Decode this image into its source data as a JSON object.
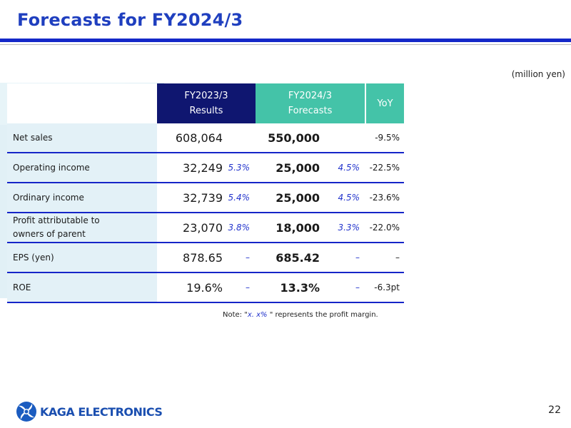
{
  "page": {
    "title": "Forecasts for FY2024/3",
    "unit": "(million yen)",
    "note_prefix": "Note: \"",
    "note_emph": "x. x%",
    "note_suffix": " \" represents the profit margin.",
    "page_number": "22",
    "logo_text": "KAGA ELECTRONICS"
  },
  "table": {
    "header": {
      "results_line1": "FY2023/3",
      "results_line2": "Results",
      "forecast_line1": "FY2024/3",
      "forecast_line2": "Forecasts",
      "yoy": "YoY"
    },
    "rows": [
      {
        "label": "Net sales",
        "label2": "",
        "result": "608,064",
        "result_margin": "",
        "forecast": "550,000",
        "forecast_margin": "",
        "yoy": "-9.5%"
      },
      {
        "label": "Operating income",
        "label2": "",
        "result": "32,249",
        "result_margin": "5.3%",
        "forecast": "25,000",
        "forecast_margin": "4.5%",
        "yoy": "-22.5%"
      },
      {
        "label": "Ordinary income",
        "label2": "",
        "result": "32,739",
        "result_margin": "5.4%",
        "forecast": "25,000",
        "forecast_margin": "4.5%",
        "yoy": "-23.6%"
      },
      {
        "label": "Profit attributable to",
        "label2": "owners of parent",
        "result": "23,070",
        "result_margin": "3.8%",
        "forecast": "18,000",
        "forecast_margin": "3.3%",
        "yoy": "-22.0%"
      },
      {
        "label": "EPS (yen)",
        "label2": "",
        "result": "878.65",
        "result_margin": "–",
        "forecast": "685.42",
        "forecast_margin": "–",
        "yoy": "–"
      },
      {
        "label": "ROE",
        "label2": "",
        "result": "19.6%",
        "result_margin": "–",
        "forecast": "13.3%",
        "forecast_margin": "–",
        "yoy": "-6.3pt"
      }
    ]
  },
  "colors": {
    "title": "#1f3fbf",
    "rule": "#1428c8",
    "results_header": "#0f1670",
    "forecast_header": "#44c3a8",
    "margin_text": "#2233cc"
  }
}
